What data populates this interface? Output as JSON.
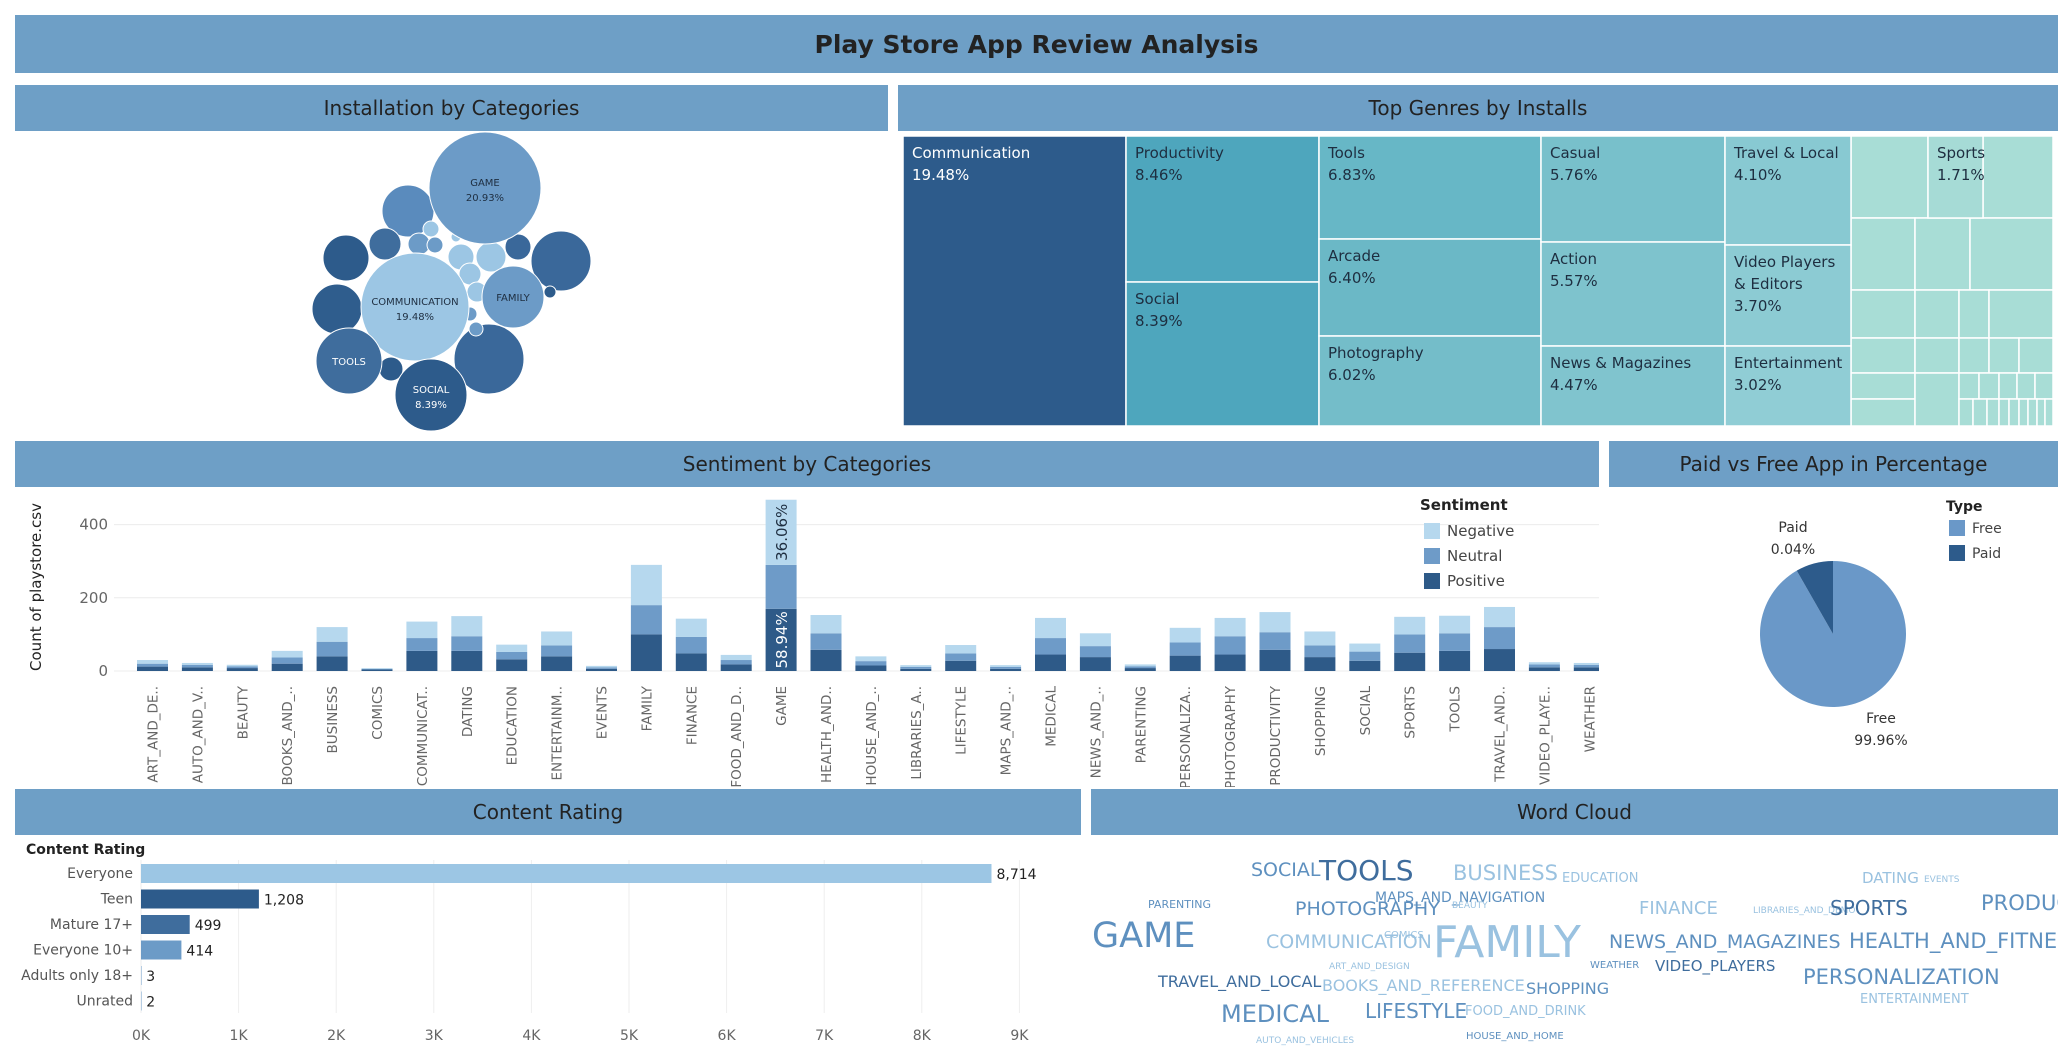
{
  "dashboard": {
    "title": "Play Store App Review Analysis"
  },
  "panels": {
    "installation": "Installation by Categories",
    "genres": "Top Genres by Installs",
    "sentiment": "Sentiment by Categories",
    "paidfree": "Paid vs Free App in Percentage",
    "content": "Content Rating",
    "wordcloud": "Word Cloud"
  },
  "colors": {
    "band": "#6e9fc6",
    "positive": "#2e5a88",
    "neutral": "#6e9bc8",
    "negative": "#b6d8ee",
    "free": "#6a98c8",
    "paid": "#2d5b8b"
  },
  "bubbles": [
    {
      "label": "GAME",
      "value": "20.93%"
    },
    {
      "label": "COMMUNICATION",
      "value": "19.48%"
    },
    {
      "label": "FAMILY",
      "value": ""
    },
    {
      "label": "TOOLS",
      "value": ""
    },
    {
      "label": "SOCIAL",
      "value": "8.39%"
    }
  ],
  "treemap": [
    {
      "label": "Communication",
      "value": "19.48%"
    },
    {
      "label": "Productivity",
      "value": "8.46%"
    },
    {
      "label": "Social",
      "value": "8.39%"
    },
    {
      "label": "Tools",
      "value": "6.83%"
    },
    {
      "label": "Arcade",
      "value": "6.40%"
    },
    {
      "label": "Photography",
      "value": "6.02%"
    },
    {
      "label": "Casual",
      "value": "5.76%"
    },
    {
      "label": "Action",
      "value": "5.57%"
    },
    {
      "label": "News & Magazines",
      "value": "4.47%"
    },
    {
      "label": "Travel & Local",
      "value": "4.10%"
    },
    {
      "label": "Video Players\n& Editors",
      "value": "3.70%"
    },
    {
      "label": "Entertainment",
      "value": "3.02%"
    },
    {
      "label": "Sports",
      "value": "1.71%"
    }
  ],
  "chart_data": [
    {
      "type": "bar",
      "title": "Sentiment by Categories",
      "ylabel": "Count of playstore.csv",
      "ylim": [
        0,
        470
      ],
      "yticks": [
        0,
        200,
        400
      ],
      "stacked": true,
      "legend_title": "Sentiment",
      "legend_position": "top-right",
      "categories": [
        "ART_AND_DE..",
        "AUTO_AND_V..",
        "BEAUTY",
        "BOOKS_AND_..",
        "BUSINESS",
        "COMICS",
        "COMMUNICAT..",
        "DATING",
        "EDUCATION",
        "ENTERTAINM..",
        "EVENTS",
        "FAMILY",
        "FINANCE",
        "FOOD_AND_D..",
        "GAME",
        "HEALTH_AND..",
        "HOUSE_AND_..",
        "LIBRARIES_A..",
        "LIFESTYLE",
        "MAPS_AND_..",
        "MEDICAL",
        "NEWS_AND_..",
        "PARENTING",
        "PERSONALIZA..",
        "PHOTOGRAPHY",
        "PRODUCTIVITY",
        "SHOPPING",
        "SOCIAL",
        "SPORTS",
        "TOOLS",
        "TRAVEL_AND..",
        "VIDEO_PLAYE..",
        "WEATHER"
      ],
      "series": [
        {
          "name": "Positive",
          "values": [
            12,
            10,
            8,
            20,
            40,
            4,
            55,
            55,
            32,
            40,
            6,
            100,
            48,
            18,
            170,
            58,
            15,
            6,
            28,
            6,
            45,
            38,
            8,
            42,
            45,
            58,
            38,
            28,
            50,
            55,
            60,
            10,
            10
          ]
        },
        {
          "name": "Neutral",
          "values": [
            8,
            7,
            5,
            17,
            40,
            2,
            35,
            40,
            20,
            30,
            4,
            80,
            45,
            12,
            120,
            45,
            12,
            5,
            20,
            5,
            45,
            30,
            5,
            36,
            50,
            48,
            32,
            25,
            50,
            48,
            60,
            8,
            7
          ]
        },
        {
          "name": "Negative",
          "values": [
            10,
            5,
            4,
            18,
            40,
            2,
            45,
            55,
            20,
            38,
            4,
            110,
            50,
            14,
            178,
            50,
            13,
            5,
            23,
            5,
            55,
            35,
            5,
            40,
            50,
            55,
            38,
            22,
            48,
            48,
            55,
            6,
            5
          ]
        }
      ],
      "annotations": [
        "36.06%",
        "58.94%"
      ]
    },
    {
      "type": "pie",
      "title": "Paid vs Free App in Percentage",
      "legend_title": "Type",
      "labels": [
        "Free",
        "Paid"
      ],
      "values": [
        99.96,
        0.04
      ],
      "value_labels": [
        "99.96%",
        "0.04%"
      ]
    },
    {
      "type": "bar",
      "orientation": "horizontal",
      "title": "Content Rating",
      "ylabel": "Content Rating",
      "categories": [
        "Everyone",
        "Teen",
        "Mature 17+",
        "Everyone 10+",
        "Adults only 18+",
        "Unrated"
      ],
      "values": [
        8714,
        1208,
        499,
        414,
        3,
        2
      ],
      "value_labels": [
        "8,714",
        "1,208",
        "499",
        "414",
        "3",
        "2"
      ],
      "xlim": [
        0,
        9500
      ],
      "xticks": [
        "0K",
        "1K",
        "2K",
        "3K",
        "4K",
        "5K",
        "6K",
        "7K",
        "8K",
        "9K"
      ]
    }
  ],
  "words": [
    {
      "text": "SOCIAL",
      "tone": "mid"
    },
    {
      "text": "TOOLS",
      "tone": "dark"
    },
    {
      "text": "BUSINESS",
      "tone": "light"
    },
    {
      "text": "EDUCATION",
      "tone": "light"
    },
    {
      "text": "DATING",
      "tone": "light"
    },
    {
      "text": "EVENTS",
      "tone": "light"
    },
    {
      "text": "PARENTING",
      "tone": "mid"
    },
    {
      "text": "PHOTOGRAPHY",
      "tone": "mid"
    },
    {
      "text": "MAPS_AND_NAVIGATION",
      "tone": "mid"
    },
    {
      "text": "BEAUTY",
      "tone": "light"
    },
    {
      "text": "FINANCE",
      "tone": "light"
    },
    {
      "text": "LIBRARIES_AND_DEMO",
      "tone": "light"
    },
    {
      "text": "SPORTS",
      "tone": "dark"
    },
    {
      "text": "PRODUCTIVITY",
      "tone": "mid"
    },
    {
      "text": "COMICS",
      "tone": "light"
    },
    {
      "text": "GAME",
      "tone": "mid"
    },
    {
      "text": "COMMUNICATION",
      "tone": "light"
    },
    {
      "text": "FAMILY",
      "tone": "light"
    },
    {
      "text": "NEWS_AND_MAGAZINES",
      "tone": "mid"
    },
    {
      "text": "HEALTH_AND_FITNESS",
      "tone": "mid"
    },
    {
      "text": "ART_AND_DESIGN",
      "tone": "light"
    },
    {
      "text": "WEATHER",
      "tone": "mid"
    },
    {
      "text": "VIDEO_PLAYERS",
      "tone": "dark"
    },
    {
      "text": "TRAVEL_AND_LOCAL",
      "tone": "dark"
    },
    {
      "text": "BOOKS_AND_REFERENCE",
      "tone": "light"
    },
    {
      "text": "SHOPPING",
      "tone": "mid"
    },
    {
      "text": "PERSONALIZATION",
      "tone": "mid"
    },
    {
      "text": "MEDICAL",
      "tone": "mid"
    },
    {
      "text": "LIFESTYLE",
      "tone": "mid"
    },
    {
      "text": "FOOD_AND_DRINK",
      "tone": "light"
    },
    {
      "text": "ENTERTAINMENT",
      "tone": "light"
    },
    {
      "text": "AUTO_AND_VEHICLES",
      "tone": "light"
    },
    {
      "text": "HOUSE_AND_HOME",
      "tone": "mid"
    }
  ]
}
